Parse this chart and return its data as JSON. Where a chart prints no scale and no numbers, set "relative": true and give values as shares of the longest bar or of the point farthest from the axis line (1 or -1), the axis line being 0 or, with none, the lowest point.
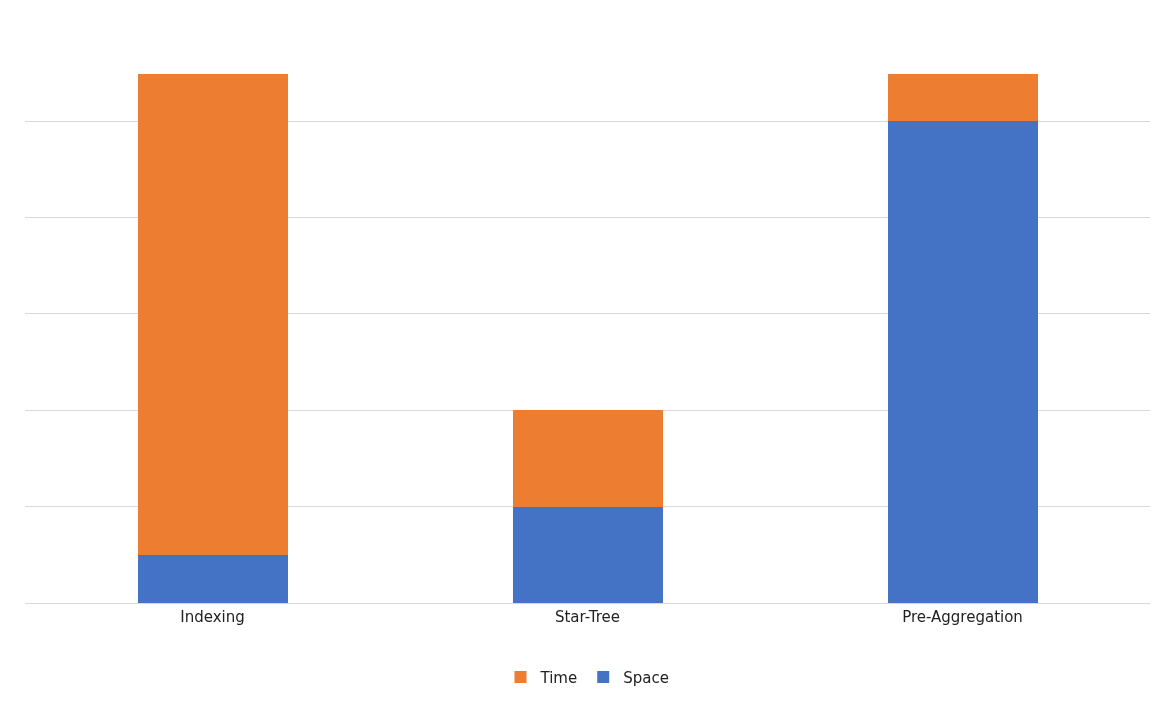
{
  "chart_data": {
    "type": "bar",
    "stacked": true,
    "relative": true,
    "categories": [
      "Indexing",
      "Star-Tree",
      "Pre-Aggregation"
    ],
    "series": [
      {
        "name": "Space",
        "color": "#4472c4",
        "values": [
          0.09,
          0.182,
          0.91
        ]
      },
      {
        "name": "Time",
        "color": "#ed7d31",
        "values": [
          0.91,
          0.182,
          0.09
        ]
      }
    ],
    "grid": "y",
    "legend": "bottom"
  }
}
